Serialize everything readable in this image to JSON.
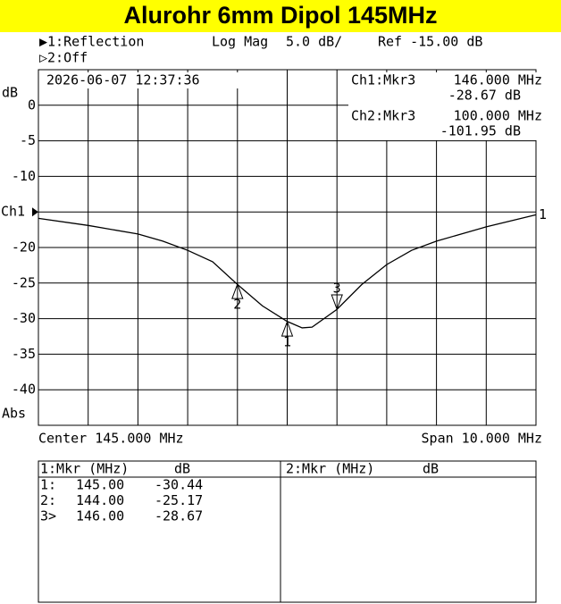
{
  "chart_data": {
    "type": "line",
    "title": "Alurohr 6mm Dipol 145MHz",
    "channel1": "▶1:Reflection",
    "format": "Log Mag",
    "scale": "5.0 dB/",
    "reference": "Ref -15.00 dB",
    "channel2": "▷2:Off",
    "timestamp": "2026-06-07 12:37:36",
    "readout1": {
      "name": "Ch1:Mkr3",
      "freq": "146.000 MHz",
      "value": "-28.67 dB"
    },
    "readout2": {
      "name": "Ch2:Mkr3",
      "freq": "100.000 MHz",
      "value": "-101.95 dB"
    },
    "y_unit": "dB",
    "y_mode": "Abs",
    "center": "Center 145.000 MHz",
    "span": "Span 10.000 MHz",
    "xlim": [
      140,
      150
    ],
    "ylim": [
      -45,
      5
    ],
    "yticks": [
      0,
      -5,
      -10,
      {
        "value": -15,
        "label": "Ch1"
      },
      -20,
      -25,
      -30,
      -35,
      -40
    ],
    "grid": true,
    "series": [
      {
        "name": "1",
        "color": "#000000",
        "x": [
          140,
          141,
          142,
          142.5,
          143,
          143.5,
          144,
          144.5,
          145,
          145.3,
          145.5,
          146,
          146.5,
          147,
          147.5,
          148,
          149,
          150
        ],
        "values": [
          -15.9,
          -16.9,
          -18.1,
          -19.1,
          -20.4,
          -22.0,
          -25.2,
          -28.2,
          -30.4,
          -31.3,
          -31.2,
          -28.7,
          -25.2,
          -22.4,
          -20.4,
          -19.1,
          -17.1,
          -15.4
        ]
      }
    ],
    "marker_labels": [
      "1",
      "2",
      "3"
    ]
  },
  "marker_table": {
    "ch1_header": "1:Mkr (MHz)",
    "ch1_unit": "dB",
    "ch2_header": "2:Mkr (MHz)",
    "ch2_unit": "dB",
    "rows": [
      {
        "id": "1:",
        "x": {
          "value": 145,
          "label": "145.00"
        },
        "y": -30.44
      },
      {
        "id": "2:",
        "x": {
          "value": 144,
          "label": "144.00"
        },
        "y": -25.17
      },
      {
        "id": "3>",
        "x": {
          "value": 146,
          "label": "146.00"
        },
        "y": -28.67
      }
    ]
  }
}
